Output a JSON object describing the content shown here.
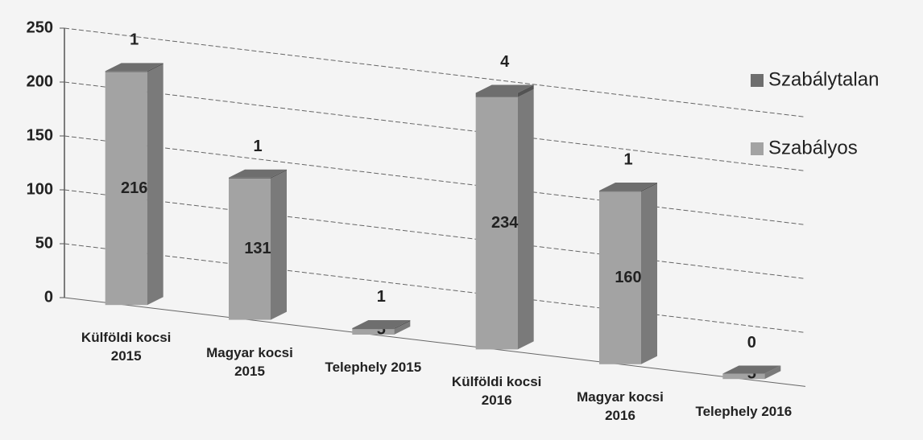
{
  "chart_data": {
    "type": "bar3d_stacked",
    "categories": [
      "Külföldi kocsi 2015",
      "Magyar kocsi 2015",
      "Telephely 2015",
      "Külföldi kocsi 2016",
      "Magyar kocsi 2016",
      "Telephely 2016"
    ],
    "series": [
      {
        "name": "Szabályos",
        "color": "#a3a3a3",
        "values": [
          216,
          131,
          5,
          234,
          160,
          5
        ]
      },
      {
        "name": "Szabálytalan",
        "color": "#6e6e6e",
        "values": [
          1,
          1,
          1,
          4,
          1,
          0
        ]
      }
    ],
    "ylim": [
      0,
      250
    ],
    "yticks": [
      0,
      50,
      100,
      150,
      200,
      250
    ],
    "grid": true,
    "legend": "right"
  }
}
